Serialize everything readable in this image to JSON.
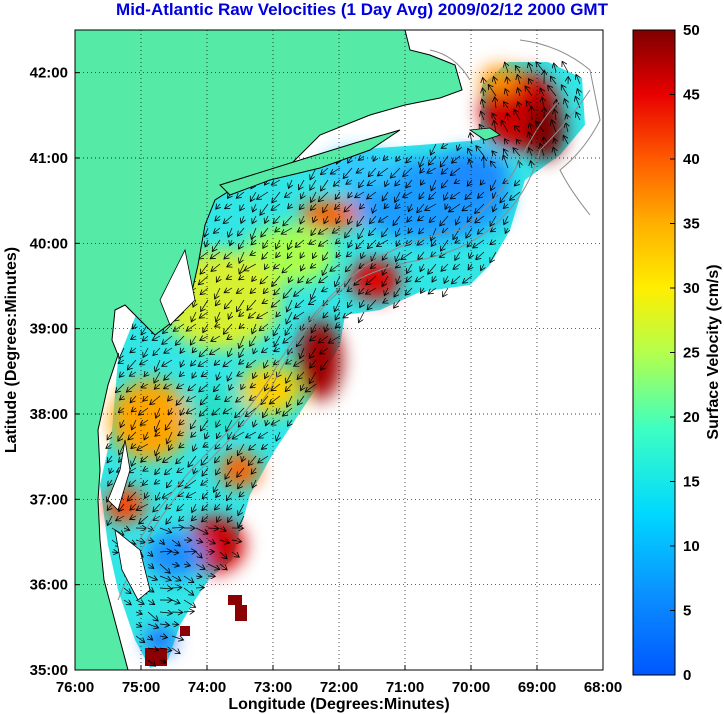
{
  "title": "Mid-Atlantic Raw Velocities (1 Day Avg) 2009/02/12 2000 GMT",
  "colors": {
    "title": "#0000dd",
    "land": "#55eaa6",
    "coast": "#000000",
    "bathymetry": "#8c8c8c",
    "arrow": "#000000",
    "grid": "#000000"
  },
  "map": {
    "x_label": "Longitude (Degrees:Minutes)",
    "y_label": "Latitude (Degrees:Minutes)",
    "lon_range": [
      -76,
      -68
    ],
    "lat_range": [
      35,
      42.5
    ],
    "x_ticks": [
      {
        "value": -76,
        "label": "76:00"
      },
      {
        "value": -75,
        "label": "75:00"
      },
      {
        "value": -74,
        "label": "74:00"
      },
      {
        "value": -73,
        "label": "73:00"
      },
      {
        "value": -72,
        "label": "72:00"
      },
      {
        "value": -71,
        "label": "71:00"
      },
      {
        "value": -70,
        "label": "70:00"
      },
      {
        "value": -69,
        "label": "69:00"
      },
      {
        "value": -68,
        "label": "68:00"
      }
    ],
    "y_ticks": [
      {
        "value": 35,
        "label": "35:00"
      },
      {
        "value": 36,
        "label": "36:00"
      },
      {
        "value": 37,
        "label": "37:00"
      },
      {
        "value": 38,
        "label": "38:00"
      },
      {
        "value": 39,
        "label": "39:00"
      },
      {
        "value": 40,
        "label": "40:00"
      },
      {
        "value": 41,
        "label": "41:00"
      },
      {
        "value": 42,
        "label": "42:00"
      }
    ],
    "grid": "dotted"
  },
  "colorbar": {
    "label": "Surface Velocity (cm/s)",
    "min": 0,
    "max": 50,
    "ticks": [
      "0",
      "5",
      "10",
      "15",
      "20",
      "25",
      "30",
      "35",
      "40",
      "45",
      "50"
    ],
    "colormap": "jet"
  },
  "chart_data": {
    "type": "heatmap",
    "title": "Mid-Atlantic Raw Velocities (1 Day Avg) 2009/02/12 2000 GMT",
    "xlabel": "Longitude (Degrees:Minutes)",
    "ylabel": "Latitude (Degrees:Minutes)",
    "xlim": [
      -76,
      -68
    ],
    "ylim": [
      35,
      42.5
    ],
    "value_label": "Surface Velocity (cm/s)",
    "value_range": [
      0,
      50
    ],
    "speed_features": [
      {
        "lon": -69.4,
        "lat": 41.3,
        "speed": 45
      },
      {
        "lon": -69.7,
        "lat": 41.9,
        "speed": 45
      },
      {
        "lon": -71.6,
        "lat": 39.6,
        "speed": 42
      },
      {
        "lon": -72.3,
        "lat": 40.3,
        "speed": 37
      },
      {
        "lon": -72.6,
        "lat": 38.5,
        "speed": 47
      },
      {
        "lon": -73.5,
        "lat": 36.5,
        "speed": 45
      },
      {
        "lon": -74.8,
        "lat": 36.9,
        "speed": 38
      },
      {
        "lon": -74.9,
        "lat": 35.1,
        "speed": 50
      },
      {
        "lon": -73.4,
        "lat": 37.4,
        "speed": 38
      },
      {
        "lon": -74.8,
        "lat": 38.0,
        "speed": 32
      },
      {
        "lon": -70.8,
        "lat": 40.5,
        "speed": 8
      },
      {
        "lon": -70.3,
        "lat": 40.9,
        "speed": 6
      },
      {
        "lon": -71.3,
        "lat": 40.7,
        "speed": 12
      },
      {
        "lon": -75.2,
        "lat": 36.4,
        "speed": 8
      },
      {
        "lon": -74.3,
        "lat": 37.3,
        "speed": 10
      },
      {
        "lon": -73.8,
        "lat": 39.7,
        "speed": 20
      }
    ]
  }
}
